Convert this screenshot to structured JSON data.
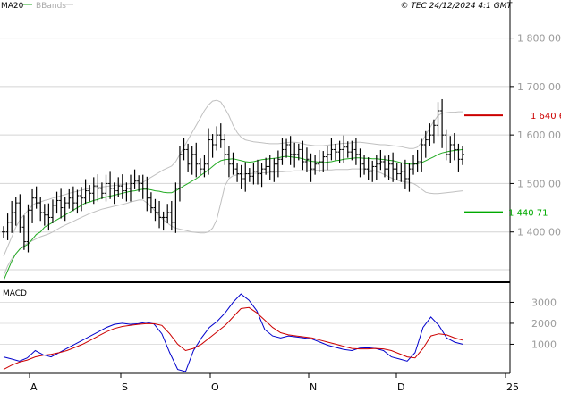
{
  "header": {
    "ma_label": "MA20",
    "bb_label": "BBands",
    "copyright": "© TEC 24/12/2024 4:1 GMT"
  },
  "macd_label": "MACD",
  "levels": {
    "resistance": {
      "value": 1640.6,
      "label": "1 640 6",
      "color": "#cc0000"
    },
    "support": {
      "value": 1440.71,
      "label": "1 440 71",
      "color": "#00aa00"
    }
  },
  "chart_data": [
    {
      "type": "candlestick",
      "title": "",
      "ylim": [
        1300,
        1860
      ],
      "y_ticks": [
        {
          "value": 1800,
          "label": "1 800 00"
        },
        {
          "value": 1700,
          "label": "1 700 00"
        },
        {
          "value": 1600,
          "label": "1 600 00"
        },
        {
          "value": 1500,
          "label": "1 500 00"
        },
        {
          "value": 1400,
          "label": "1 400 00"
        }
      ],
      "x_ticks": [
        "A",
        "S",
        "O",
        "N",
        "D",
        "25"
      ],
      "grid": true,
      "close": [
        1400,
        1420,
        1440,
        1460,
        1410,
        1380,
        1445,
        1470,
        1460,
        1440,
        1435,
        1430,
        1455,
        1465,
        1450,
        1460,
        1470,
        1460,
        1475,
        1470,
        1485,
        1480,
        1495,
        1490,
        1480,
        1500,
        1490,
        1485,
        1495,
        1485,
        1490,
        1500,
        1505,
        1500,
        1490,
        1470,
        1450,
        1440,
        1430,
        1430,
        1440,
        1420,
        1490,
        1560,
        1570,
        1540,
        1560,
        1540,
        1530,
        1540,
        1590,
        1580,
        1600,
        1590,
        1560,
        1540,
        1530,
        1520,
        1510,
        1520,
        1515,
        1525,
        1520,
        1530,
        1535,
        1525,
        1540,
        1550,
        1570,
        1580,
        1560,
        1560,
        1570,
        1545,
        1550,
        1530,
        1540,
        1545,
        1555,
        1560,
        1570,
        1565,
        1570,
        1575,
        1565,
        1570,
        1560,
        1540,
        1530,
        1525,
        1535,
        1540,
        1545,
        1530,
        1540,
        1530,
        1520,
        1525,
        1510,
        1530,
        1540,
        1545,
        1580,
        1590,
        1600,
        1620,
        1650,
        1600,
        1560,
        1580,
        1570,
        1550,
        1560
      ],
      "ma20": [
        1300,
        1320,
        1340,
        1355,
        1365,
        1370,
        1375,
        1385,
        1395,
        1400,
        1410,
        1415,
        1420,
        1425,
        1430,
        1435,
        1440,
        1445,
        1450,
        1455,
        1460,
        1462,
        1465,
        1467,
        1470,
        1472,
        1474,
        1476,
        1478,
        1480,
        1482,
        1484,
        1485,
        1487,
        1488,
        1488,
        1487,
        1485,
        1484,
        1482,
        1481,
        1481,
        1485,
        1490,
        1495,
        1500,
        1505,
        1510,
        1516,
        1522,
        1528,
        1535,
        1542,
        1547,
        1549,
        1550,
        1551,
        1549,
        1547,
        1545,
        1544,
        1545,
        1547,
        1549,
        1550,
        1551,
        1552,
        1553,
        1555,
        1556,
        1555,
        1554,
        1553,
        1551,
        1548,
        1546,
        1545,
        1544,
        1543,
        1544,
        1545,
        1547,
        1548,
        1550,
        1551,
        1552,
        1553,
        1553,
        1552,
        1552,
        1551,
        1551,
        1550,
        1549,
        1548,
        1547,
        1545,
        1543,
        1541,
        1540,
        1540,
        1541,
        1543,
        1547,
        1551,
        1555,
        1560,
        1563,
        1565,
        1567,
        1568,
        1569,
        1570
      ],
      "bb_upper": [
        1350,
        1370,
        1390,
        1410,
        1425,
        1435,
        1445,
        1455,
        1460,
        1462,
        1465,
        1467,
        1470,
        1472,
        1475,
        1477,
        1480,
        1482,
        1484,
        1486,
        1488,
        1490,
        1491,
        1492,
        1493,
        1494,
        1495,
        1496,
        1497,
        1498,
        1499,
        1500,
        1500,
        1501,
        1502,
        1508,
        1513,
        1518,
        1523,
        1528,
        1532,
        1536,
        1545,
        1560,
        1575,
        1590,
        1605,
        1620,
        1635,
        1650,
        1662,
        1670,
        1672,
        1668,
        1655,
        1640,
        1620,
        1605,
        1595,
        1590,
        1588,
        1586,
        1585,
        1584,
        1583,
        1582,
        1582,
        1582,
        1583,
        1584,
        1585,
        1585,
        1584,
        1582,
        1580,
        1579,
        1578,
        1578,
        1578,
        1579,
        1580,
        1581,
        1582,
        1583,
        1583,
        1584,
        1585,
        1585,
        1584,
        1583,
        1582,
        1581,
        1580,
        1580,
        1579,
        1578,
        1577,
        1576,
        1574,
        1572,
        1572,
        1575,
        1585,
        1600,
        1615,
        1628,
        1640,
        1645,
        1646,
        1647,
        1647,
        1648,
        1648
      ],
      "bb_lower": [
        1310,
        1330,
        1345,
        1355,
        1365,
        1372,
        1378,
        1382,
        1386,
        1390,
        1393,
        1396,
        1400,
        1405,
        1410,
        1414,
        1418,
        1422,
        1426,
        1430,
        1434,
        1438,
        1441,
        1444,
        1447,
        1449,
        1451,
        1453,
        1455,
        1457,
        1459,
        1462,
        1464,
        1466,
        1466,
        1460,
        1452,
        1443,
        1434,
        1425,
        1418,
        1412,
        1408,
        1406,
        1404,
        1402,
        1400,
        1399,
        1398,
        1398,
        1400,
        1408,
        1425,
        1460,
        1495,
        1510,
        1516,
        1518,
        1519,
        1520,
        1520,
        1521,
        1521,
        1522,
        1522,
        1523,
        1523,
        1524,
        1524,
        1525,
        1525,
        1526,
        1526,
        1526,
        1526,
        1527,
        1527,
        1527,
        1528,
        1528,
        1528,
        1529,
        1529,
        1529,
        1529,
        1530,
        1530,
        1530,
        1530,
        1529,
        1527,
        1525,
        1522,
        1518,
        1514,
        1510,
        1507,
        1505,
        1503,
        1502,
        1500,
        1495,
        1488,
        1482,
        1480,
        1479,
        1479,
        1480,
        1481,
        1482,
        1483,
        1484,
        1485
      ]
    },
    {
      "type": "line",
      "title": "MACD",
      "ylim": [
        -300,
        3700
      ],
      "y_ticks": [
        {
          "value": 3000,
          "label": "3000"
        },
        {
          "value": 2000,
          "label": "2000"
        },
        {
          "value": 1000,
          "label": "1000"
        }
      ],
      "series": [
        {
          "color": "#0000cc",
          "values": [
            400,
            300,
            200,
            350,
            700,
            500,
            400,
            600,
            800,
            1000,
            1200,
            1400,
            1600,
            1800,
            1950,
            2000,
            1950,
            1980,
            2050,
            1970,
            1500,
            600,
            -200,
            -300,
            700,
            1300,
            1800,
            2100,
            2500,
            3000,
            3400,
            3100,
            2600,
            1700,
            1400,
            1300,
            1400,
            1350,
            1300,
            1250,
            1100,
            950,
            850,
            750,
            700,
            820,
            830,
            800,
            700,
            400,
            300,
            200,
            600,
            1800,
            2300,
            1900,
            1300,
            1100,
            1000
          ]
        },
        {
          "color": "#cc0000",
          "values": [
            -200,
            0,
            150,
            250,
            400,
            480,
            520,
            600,
            700,
            850,
            1000,
            1200,
            1400,
            1600,
            1750,
            1850,
            1900,
            1950,
            1980,
            1980,
            1900,
            1500,
            1000,
            700,
            800,
            1000,
            1300,
            1600,
            1900,
            2300,
            2700,
            2750,
            2500,
            2150,
            1800,
            1550,
            1450,
            1400,
            1350,
            1300,
            1200,
            1100,
            1000,
            900,
            800,
            780,
            780,
            800,
            780,
            700,
            550,
            400,
            350,
            800,
            1400,
            1500,
            1450,
            1300,
            1200
          ]
        }
      ]
    }
  ]
}
